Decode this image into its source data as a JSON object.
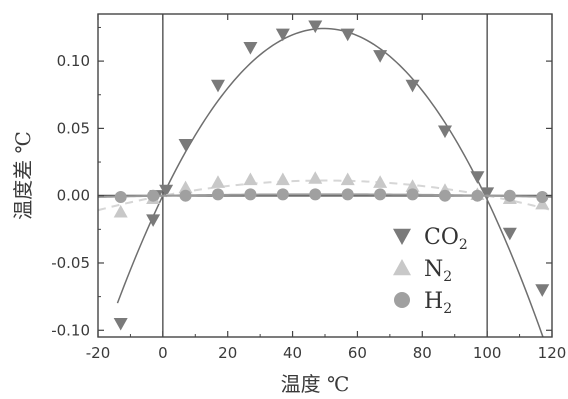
{
  "chart_data": {
    "type": "scatter",
    "title": "",
    "xlabel": "温度  ℃",
    "ylabel": "温度差  ℃",
    "xlim": [
      -20,
      120
    ],
    "ylim": [
      -0.105,
      0.135
    ],
    "x_ticks": [
      -20,
      0,
      20,
      40,
      60,
      80,
      100,
      120
    ],
    "x_tick_labels": [
      "-20",
      "0",
      "20",
      "40",
      "60",
      "80",
      "100",
      "120"
    ],
    "y_ticks": [
      -0.1,
      -0.05,
      0.0,
      0.05,
      0.1
    ],
    "y_tick_labels": [
      "-0.10",
      "-0.05",
      "0.00",
      "0.05",
      "0.10"
    ],
    "reference_lines_x": [
      0,
      100
    ],
    "grid": false,
    "legend_position": "bottom-right",
    "series": [
      {
        "name": "CO",
        "name_subscript": "2",
        "marker": "triangle-down",
        "color": "#7a7a7a",
        "points": [
          {
            "x": -13,
            "y": -0.095
          },
          {
            "x": -3,
            "y": -0.018
          },
          {
            "x": -2,
            "y": 0.0
          },
          {
            "x": 1,
            "y": 0.004
          },
          {
            "x": 7,
            "y": 0.038
          },
          {
            "x": 17,
            "y": 0.082
          },
          {
            "x": 27,
            "y": 0.11
          },
          {
            "x": 37,
            "y": 0.12
          },
          {
            "x": 47,
            "y": 0.126
          },
          {
            "x": 57,
            "y": 0.12
          },
          {
            "x": 67,
            "y": 0.104
          },
          {
            "x": 77,
            "y": 0.082
          },
          {
            "x": 87,
            "y": 0.048
          },
          {
            "x": 97,
            "y": 0.014
          },
          {
            "x": 100,
            "y": 0.002
          },
          {
            "x": 107,
            "y": -0.028
          },
          {
            "x": 117,
            "y": -0.07
          }
        ],
        "curve": {
          "x": [
            -14,
            120
          ],
          "a": -5.03e-05,
          "b": 0.005
        }
      },
      {
        "name": "N",
        "name_subscript": "2",
        "marker": "triangle-up",
        "color": "#c8c8c8",
        "points": [
          {
            "x": -13,
            "y": -0.012
          },
          {
            "x": -3,
            "y": -0.002
          },
          {
            "x": 7,
            "y": 0.006
          },
          {
            "x": 17,
            "y": 0.01
          },
          {
            "x": 27,
            "y": 0.012
          },
          {
            "x": 37,
            "y": 0.012
          },
          {
            "x": 47,
            "y": 0.013
          },
          {
            "x": 57,
            "y": 0.012
          },
          {
            "x": 67,
            "y": 0.01
          },
          {
            "x": 77,
            "y": 0.007
          },
          {
            "x": 87,
            "y": 0.004
          },
          {
            "x": 97,
            "y": 0.001
          },
          {
            "x": 107,
            "y": -0.002
          },
          {
            "x": 117,
            "y": -0.006
          }
        ],
        "curve": {
          "x": [
            -20,
            120
          ],
          "a": -4.5e-06,
          "b": 0.00045
        }
      },
      {
        "name": "H",
        "name_subscript": "2",
        "marker": "circle",
        "color": "#a0a0a0",
        "points": [
          {
            "x": -13,
            "y": -0.001
          },
          {
            "x": -3,
            "y": 0.0
          },
          {
            "x": 7,
            "y": 0.0
          },
          {
            "x": 17,
            "y": 0.001
          },
          {
            "x": 27,
            "y": 0.001
          },
          {
            "x": 37,
            "y": 0.001
          },
          {
            "x": 47,
            "y": 0.001
          },
          {
            "x": 57,
            "y": 0.001
          },
          {
            "x": 67,
            "y": 0.001
          },
          {
            "x": 77,
            "y": 0.001
          },
          {
            "x": 87,
            "y": 0.0
          },
          {
            "x": 97,
            "y": 0.0
          },
          {
            "x": 107,
            "y": 0.0
          },
          {
            "x": 117,
            "y": -0.001
          }
        ],
        "curve": {
          "x": [
            -20,
            120
          ],
          "a": -4e-07,
          "b": 4e-05
        }
      }
    ]
  }
}
